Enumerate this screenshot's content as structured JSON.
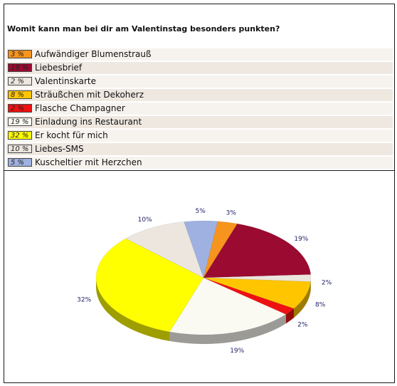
{
  "question": "Womit kann man bei dir am Valentinstag besonders punkten?",
  "chart_data": {
    "type": "pie",
    "style": "3d",
    "categories": [
      "Aufwändiger Blumenstrauß",
      "Liebesbrief",
      "Valentinskarte",
      "Sträußchen mit Dekoherz",
      "Flasche Champagner",
      "Einladung ins Restaurant",
      "Er kocht für mich",
      "Liebes-SMS",
      "Kuscheltier mit Herzchen"
    ],
    "values": [
      3,
      19,
      2,
      8,
      2,
      19,
      32,
      10,
      5
    ],
    "value_labels": [
      "3 %",
      "19 %",
      "2 %",
      "8 %",
      "2 %",
      "19 %",
      "32 %",
      "10 %",
      "5 %"
    ],
    "slice_labels": [
      "3%",
      "19%",
      "2%",
      "8%",
      "2%",
      "19%",
      "32%",
      "10%",
      "5%"
    ],
    "colors": [
      "#f7941d",
      "#9b0a30",
      "#ece6de",
      "#ffc600",
      "#ee1111",
      "#faf9f2",
      "#ffff00",
      "#ece6de",
      "#9fb1e0"
    ],
    "unit": "%",
    "legend_position": "top"
  }
}
